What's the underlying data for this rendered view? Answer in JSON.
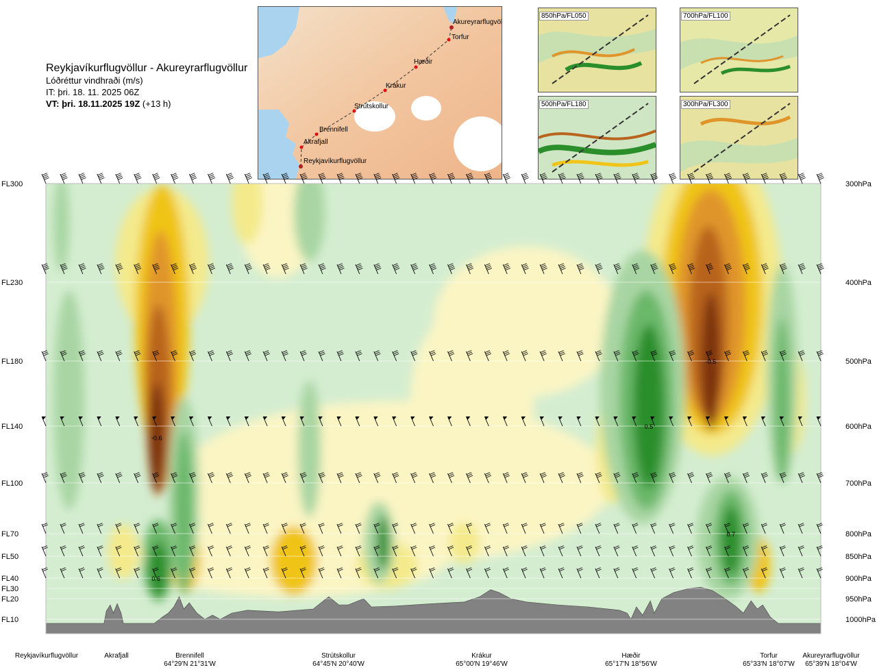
{
  "header": {
    "route": "Reykjavíkurflugvöllur - Akureyrarflugvöllur",
    "quantity": "Lóðréttur vindhraði (m/s)",
    "issue_time": "IT: þri. 18. 11. 2025 06Z",
    "valid_prefix": "VT: þri. 18.11.2025 19Z",
    "valid_offset": " (+13 h)"
  },
  "map": {
    "waypoints": [
      "Reykjavíkurflugvöllur",
      "Akrafjall",
      "Brennifell",
      "Strútskollur",
      "Krákur",
      "Hæðir",
      "Torfur",
      "Akureyrarflugvöllur"
    ]
  },
  "insets": [
    {
      "label": "850hPa/FL050"
    },
    {
      "label": "700hPa/FL100"
    },
    {
      "label": "500hPa/FL180"
    },
    {
      "label": "300hPa/FL300"
    }
  ],
  "colors": {
    "strong_down": "#7a3310",
    "down3": "#b8631e",
    "down2": "#e0952a",
    "down1": "#f0c418",
    "weak_down": "#f4ea8c",
    "neutral_down": "#fbf5c4",
    "neutral_up": "#d4edd0",
    "weak_up": "#a8d5a3",
    "up2": "#6bb86a",
    "strong_up": "#2a8e2a",
    "terrain": "#828282"
  },
  "chart_data": {
    "type": "heatmap",
    "title": "Lóðréttur vindhraði (m/s)",
    "flight_levels": [
      {
        "fl": "FL300",
        "p": 300,
        "hpa": "300hPa"
      },
      {
        "fl": "FL230",
        "p": 400,
        "hpa": "400hPa"
      },
      {
        "fl": "FL180",
        "p": 500,
        "hpa": "500hPa"
      },
      {
        "fl": "FL140",
        "p": 600,
        "hpa": "600hPa"
      },
      {
        "fl": "FL100",
        "p": 700,
        "hpa": "700hPa"
      },
      {
        "fl": "FL70",
        "p": 800,
        "hpa": "800hPa"
      },
      {
        "fl": "FL50",
        "p": 850,
        "hpa": "850hPa"
      },
      {
        "fl": "FL40",
        "p": 900,
        "hpa": "900hPa"
      },
      {
        "fl": "FL30",
        "p": 925,
        "hpa": ""
      },
      {
        "fl": "FL20",
        "p": 950,
        "hpa": "950hPa"
      },
      {
        "fl": "FL10",
        "p": 1000,
        "hpa": "1000hPa"
      }
    ],
    "locations": [
      {
        "name": "Reykjavíkurflugvöllur",
        "coord": "",
        "pos": 0.0
      },
      {
        "name": "Akrafjall",
        "coord": "",
        "pos": 0.092
      },
      {
        "name": "Brennifell",
        "coord": "64°29'N 21°31'W",
        "pos": 0.185
      },
      {
        "name": "Strútskollur",
        "coord": "64°45'N 20°40'W",
        "pos": 0.378
      },
      {
        "name": "Krákur",
        "coord": "65°00'N 19°46'W",
        "pos": 0.574
      },
      {
        "name": "Hæðir",
        "coord": "65°17'N 18°56'W",
        "pos": 0.759
      },
      {
        "name": "Torfur",
        "coord": "65°33'N 18°07'W",
        "pos": 0.952
      },
      {
        "name": "Akureyrarflugvöllur",
        "coord": "65°39'N 18°04'W",
        "pos": 1.0
      }
    ],
    "extrema": [
      {
        "value": "-0.6",
        "pos": 0.143,
        "p": 620
      },
      {
        "value": "0.6",
        "pos": 0.142,
        "p": 900
      },
      {
        "value": "-0.5",
        "pos": 0.858,
        "p": 500
      },
      {
        "value": "0.5",
        "pos": 0.778,
        "p": 600
      },
      {
        "value": "0.7",
        "pos": 0.884,
        "p": 800
      }
    ]
  }
}
